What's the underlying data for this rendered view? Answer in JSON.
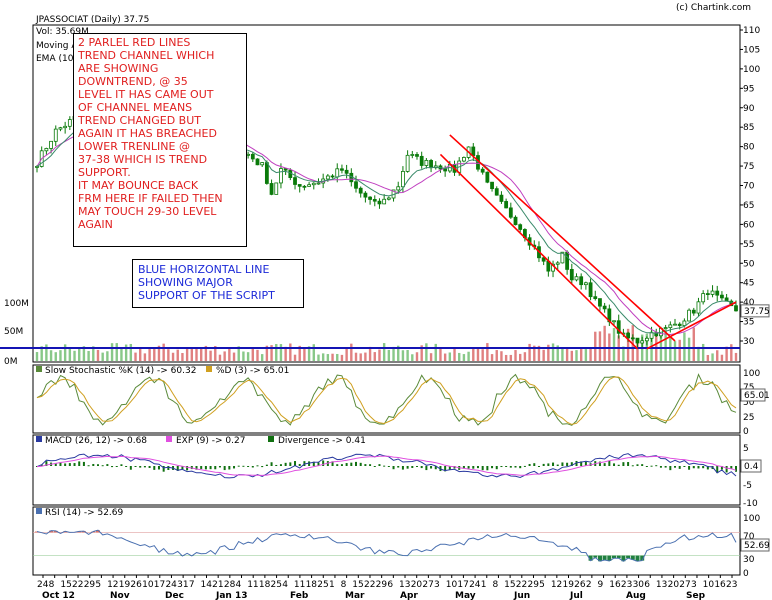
{
  "credit": "(c) Chartink.com",
  "header": {
    "title": "JPASSOCIAT (Daily) 37.75",
    "volume": "Vol: 35.69M",
    "ma_label": "Moving A",
    "ema_label": "EMA (10"
  },
  "annotations": {
    "channel_note": [
      "2 PARLEL RED LINES",
      "TREND CHANNEL WHICH",
      "ARE SHOWING",
      "DOWNTREND, @ 35",
      "LEVEL IT HAS CAME OUT",
      "OF CHANNEL MEANS",
      "TREND CHANGED BUT",
      "AGAIN IT HAS BREACHED",
      "LOWER TRENLINE @",
      "37-38 WHICH IS TREND",
      "SUPPORT.",
      "IT MAY BOUNCE BACK",
      "FRM HERE IF FAILED THEN",
      "MAY TOUCH 29-30 LEVEL",
      "AGAIN"
    ],
    "support_note": [
      "BLUE HORIZONTAL LINE",
      "SHOWING MAJOR",
      "SUPPORT OF THE SCRIPT"
    ]
  },
  "colors": {
    "price": "#0a7a0a",
    "ma": "#c040c0",
    "ema": "#3a8a6a",
    "trend": "#ff0000",
    "support": "#1414b4",
    "vol_up": "#88c888",
    "vol_down": "#e08080",
    "k": "#5a8a3a",
    "d": "#d0a020",
    "macd": "#2a3aa0",
    "exp": "#e050e0",
    "div": "#107010",
    "rsi": "#4a70b0",
    "rsi_hi": "#e07060",
    "rsi_lo": "#208040"
  },
  "chart_data": [
    {
      "type": "candlestick",
      "title": "JPASSOCIAT (Daily) 37.75",
      "price_ticks": [
        "110",
        "105",
        "100",
        "95",
        "90",
        "85",
        "80",
        "75",
        "70",
        "65",
        "60",
        "55",
        "50",
        "45",
        "40",
        "37.75",
        "35",
        "30"
      ],
      "volume_ticks": [
        "100M",
        "50M",
        "0M"
      ],
      "last_price": 37.75,
      "close_path": [
        [
          0,
          76
        ],
        [
          4,
          84
        ],
        [
          9,
          88
        ],
        [
          12,
          95
        ],
        [
          16,
          98
        ],
        [
          20,
          104
        ],
        [
          24,
          100
        ],
        [
          27,
          96
        ],
        [
          31,
          90
        ],
        [
          36,
          84
        ],
        [
          38,
          80
        ],
        [
          42,
          77
        ],
        [
          45,
          78
        ],
        [
          48,
          75
        ],
        [
          50,
          68
        ],
        [
          52,
          74
        ],
        [
          56,
          70
        ],
        [
          60,
          71
        ],
        [
          65,
          74
        ],
        [
          68,
          69
        ],
        [
          72,
          65
        ],
        [
          74,
          66
        ],
        [
          77,
          70
        ],
        [
          79,
          78
        ],
        [
          82,
          76
        ],
        [
          86,
          75
        ],
        [
          89,
          74
        ],
        [
          92,
          80
        ],
        [
          94,
          75
        ],
        [
          96,
          70
        ],
        [
          99,
          65
        ],
        [
          102,
          61
        ],
        [
          106,
          54
        ],
        [
          109,
          48
        ],
        [
          112,
          52
        ],
        [
          114,
          46
        ],
        [
          117,
          45
        ],
        [
          119,
          40
        ],
        [
          122,
          36
        ],
        [
          125,
          31
        ],
        [
          128,
          30
        ],
        [
          131,
          32
        ],
        [
          134,
          33
        ],
        [
          137,
          35
        ],
        [
          140,
          38
        ],
        [
          143,
          43
        ],
        [
          146,
          40
        ],
        [
          149,
          37.75
        ]
      ],
      "ma_label": "Moving A",
      "ema_label": "EMA (10",
      "trendlines": [
        {
          "from": [
            88,
            83
          ],
          "to": [
            136,
            30
          ]
        },
        {
          "from": [
            86,
            78
          ],
          "to": [
            128,
            28
          ]
        },
        {
          "from": [
            130,
            28
          ],
          "to": [
            149,
            40
          ]
        }
      ],
      "support_level": 30,
      "x_ticks": [
        "24",
        "8",
        "15",
        "22",
        "29",
        "5",
        "12",
        "19",
        "26",
        "10",
        "17",
        "24",
        "31",
        "7",
        "14",
        "21",
        "28",
        "4",
        "11",
        "18",
        "25",
        "4",
        "11",
        "18",
        "25",
        "1",
        "8",
        "15",
        "22",
        "29",
        "6",
        "13",
        "20",
        "27",
        "3",
        "10",
        "17",
        "24",
        "1",
        "8",
        "15",
        "22",
        "29",
        "5",
        "12",
        "19",
        "26",
        "2",
        "9",
        "16",
        "23",
        "30",
        "6",
        "13",
        "20",
        "27",
        "3",
        "10",
        "16",
        "23"
      ],
      "month_labels": [
        "Oct 12",
        "Nov",
        "Dec",
        "Jan 13",
        "Feb",
        "Mar",
        "Apr",
        "May",
        "Jun",
        "Jul",
        "Aug",
        "Sep"
      ]
    },
    {
      "type": "line",
      "title": "Slow Stochastic %K (14) -> 60.32",
      "series": [
        {
          "name": "Slow Stochastic %K (14) -> 60.32",
          "last": 60.32
        },
        {
          "name": "%D (3) -> 65.01",
          "last": 65.01
        }
      ],
      "ticks": [
        "100",
        "75",
        "50",
        "25",
        "0"
      ],
      "last_label": "65.01"
    },
    {
      "type": "line",
      "title": "MACD (26, 12) -> 0.68",
      "series": [
        {
          "name": "MACD (26, 12) -> 0.68",
          "last": 0.68
        },
        {
          "name": "EXP (9) -> 0.27",
          "last": 0.27
        },
        {
          "name": "Divergence -> 0.41",
          "last": 0.41
        }
      ],
      "ticks": [
        "5",
        "0",
        "-5",
        "-10"
      ],
      "last_label": "0.4"
    },
    {
      "type": "line",
      "title": "RSI (14) -> 52.69",
      "series": [
        {
          "name": "RSI (14) -> 52.69",
          "last": 52.69
        }
      ],
      "ticks": [
        "100",
        "70",
        "50",
        "30",
        "0"
      ],
      "levels": [
        70,
        30
      ],
      "last_label": "52.69"
    }
  ]
}
